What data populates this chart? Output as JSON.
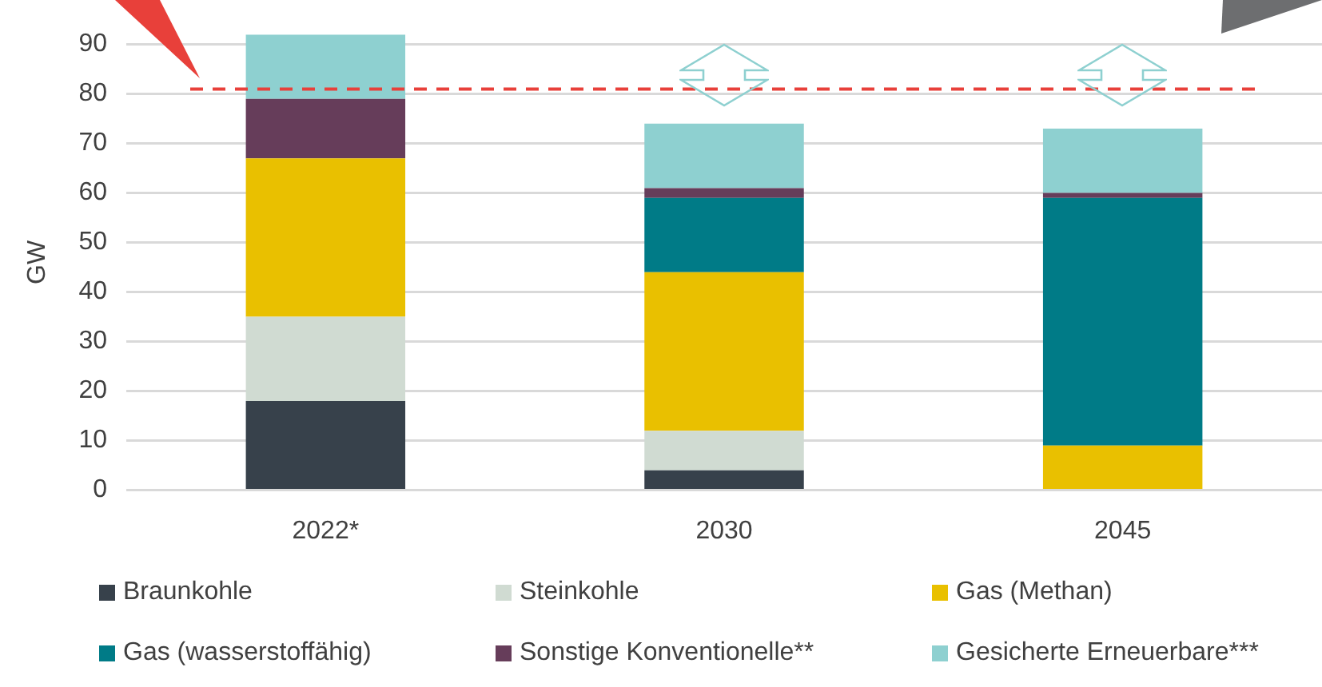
{
  "chart_data": {
    "type": "bar",
    "stacked": true,
    "ylabel": "GW",
    "categories": [
      "2022*",
      "2030",
      "2045"
    ],
    "series": [
      {
        "name": "Braunkohle",
        "color": "#37414b",
        "values": [
          18,
          4,
          0
        ]
      },
      {
        "name": "Steinkohle",
        "color": "#d0dbd2",
        "values": [
          17,
          8,
          0
        ]
      },
      {
        "name": "Gas (Methan)",
        "color": "#e9c000",
        "values": [
          32,
          32,
          9
        ]
      },
      {
        "name": "Gas (wasserstoffähig)",
        "color": "#007b87",
        "values": [
          0,
          15,
          50
        ]
      },
      {
        "name": "Sonstige Konventionelle**",
        "color": "#663d5a",
        "values": [
          12,
          2,
          1
        ]
      },
      {
        "name": "Gesicherte Erneuerbare***",
        "color": "#8ed0d0",
        "values": [
          13,
          13,
          13
        ]
      }
    ],
    "ylim": [
      0,
      92
    ],
    "yticks": [
      0,
      10,
      20,
      30,
      40,
      50,
      60,
      70,
      80,
      90
    ],
    "grid": "y",
    "legend": "bottom",
    "ref_lines": [
      {
        "axis": "y",
        "value": 81,
        "color": "#e8403a",
        "line_style": "dashed"
      }
    ]
  }
}
